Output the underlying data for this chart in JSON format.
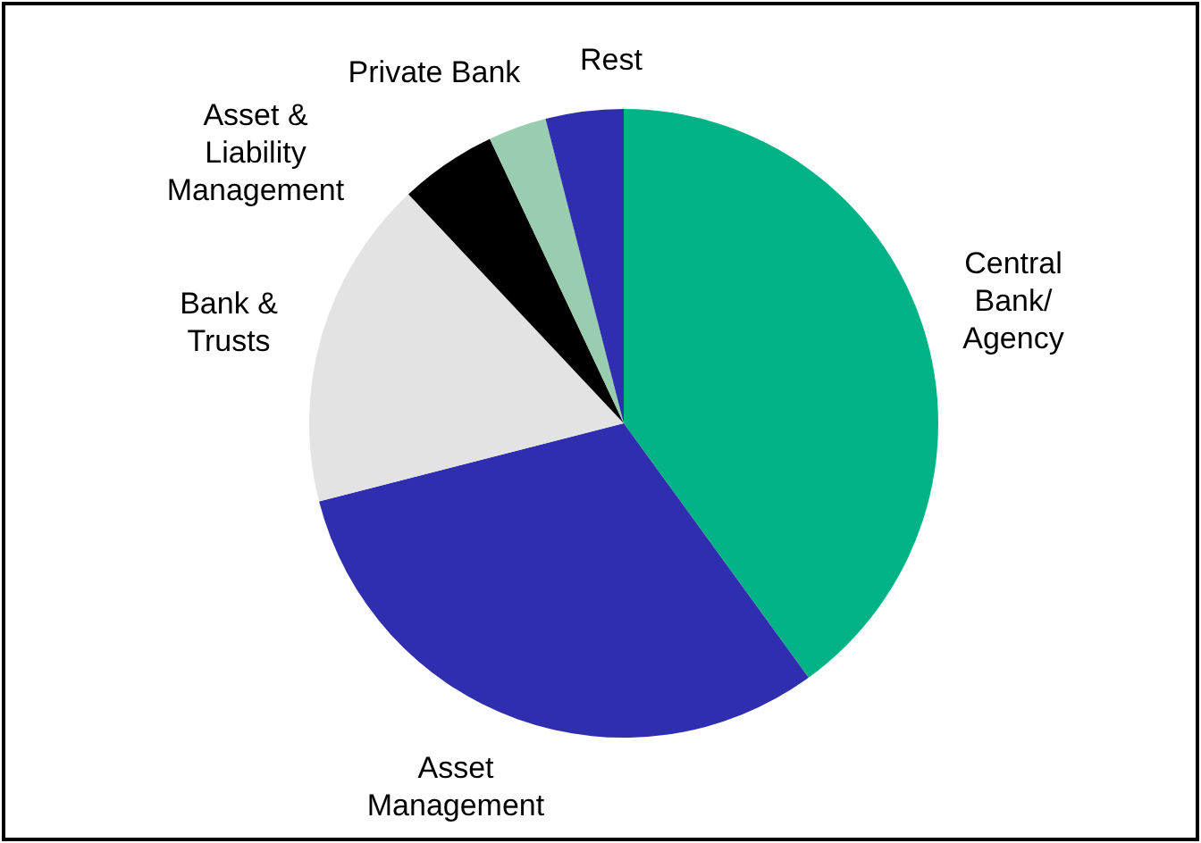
{
  "chart_data": {
    "type": "pie",
    "categories": [
      "Central\nBank/\nAgency",
      "Asset\nManagement",
      "Bank &\nTrusts",
      "Asset &\nLiability\nManagement",
      "Private Bank",
      "Rest"
    ],
    "values": [
      40,
      31,
      17,
      5,
      3,
      4
    ],
    "colors": [
      "#00b386",
      "#2e2eae",
      "#e3e3e3",
      "#000000",
      "#99cdb0",
      "#2e2eae"
    ]
  }
}
